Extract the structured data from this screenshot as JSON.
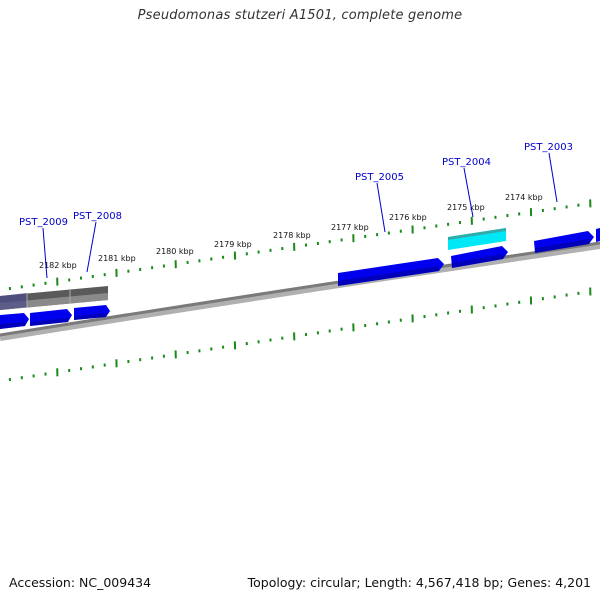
{
  "header": {
    "title": "Pseudomonas stutzeri A1501, complete genome"
  },
  "footer": {
    "accession": "Accession: NC_009434",
    "topology": "Topology: circular; Length: 4,567,418 bp; Genes: 4,201"
  },
  "colors": {
    "gene_fwd": "#0000ee",
    "gene_rev": "#0000ee",
    "highlight": "#00e5f0",
    "feature_gray": "#666666",
    "backbone": "#808080",
    "tick": "#1a8a1a",
    "label": "#0000cc"
  },
  "scale": {
    "labels": [
      "2182 kbp",
      "2181 kbp",
      "2180 kbp",
      "2179 kbp",
      "2178 kbp",
      "2177 kbp",
      "2176 kbp",
      "2175 kbp",
      "2174 kbp"
    ]
  },
  "genes": [
    {
      "name": "PST_2009"
    },
    {
      "name": "PST_2008"
    },
    {
      "name": "PST_2005"
    },
    {
      "name": "PST_2004"
    },
    {
      "name": "PST_2003"
    }
  ]
}
